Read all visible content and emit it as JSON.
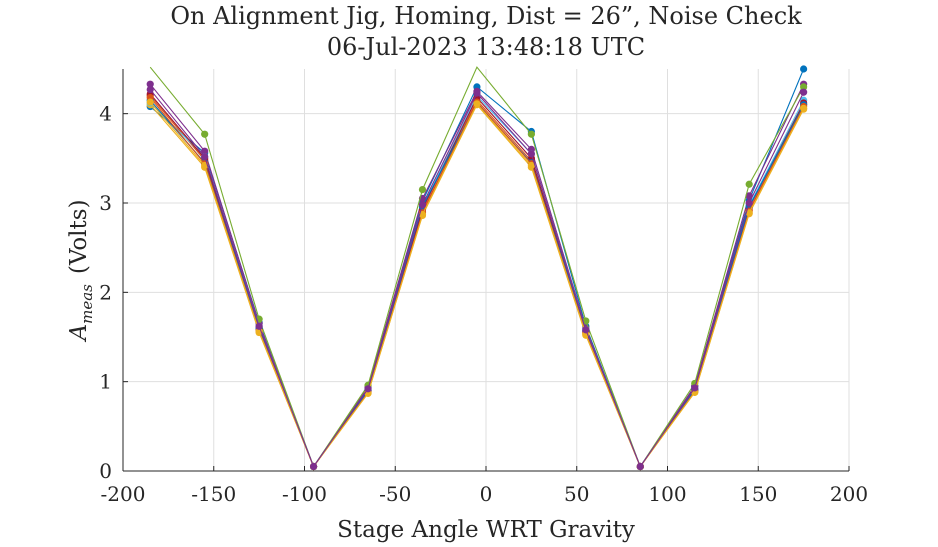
{
  "chart_data": {
    "type": "line",
    "title": [
      "On Alignment Jig, Homing, Dist = 26”, Noise Check",
      "06-Jul-2023 13:48:18 UTC"
    ],
    "xlabel": "Stage Angle WRT Gravity",
    "ylabel": "A_meas (Volts)",
    "ylabel_main": "A",
    "ylabel_sub": "meas",
    "ylabel_units": "(Volts)",
    "xlim": [
      -200,
      200
    ],
    "ylim": [
      0,
      4.5
    ],
    "xticks": [
      -200,
      -150,
      -100,
      -50,
      0,
      50,
      100,
      150,
      200
    ],
    "yticks": [
      0,
      1,
      2,
      3,
      4
    ],
    "grid": true,
    "x": [
      -185,
      -155,
      -125,
      -95,
      -65,
      -35,
      -5,
      25,
      55,
      85,
      115,
      145,
      175
    ],
    "series": [
      {
        "color": "#0072BD",
        "values": [
          4.08,
          3.56,
          1.66,
          0.05,
          0.93,
          3.02,
          4.3,
          3.8,
          1.62,
          0.05,
          0.95,
          3.03,
          4.5
        ]
      },
      {
        "color": "#D95319",
        "values": [
          4.2,
          3.48,
          1.58,
          0.05,
          0.89,
          2.9,
          4.15,
          3.47,
          1.55,
          0.05,
          0.9,
          2.92,
          4.1
        ]
      },
      {
        "color": "#EDB120",
        "values": [
          4.1,
          3.4,
          1.55,
          0.05,
          0.87,
          2.86,
          4.1,
          3.4,
          1.52,
          0.05,
          0.88,
          2.88,
          4.05
        ]
      },
      {
        "color": "#7E2F8E",
        "values": [
          4.33,
          3.58,
          1.65,
          0.05,
          0.94,
          3.05,
          4.25,
          3.6,
          1.6,
          0.05,
          0.95,
          3.08,
          4.33
        ]
      },
      {
        "color": "#77AC30",
        "values": [
          4.55,
          3.77,
          1.7,
          0.05,
          0.96,
          3.15,
          4.55,
          3.77,
          1.68,
          0.05,
          0.98,
          3.21,
          4.3
        ]
      },
      {
        "color": "#4DBEEE",
        "values": [
          4.12,
          3.52,
          1.62,
          0.05,
          0.91,
          2.95,
          4.2,
          3.55,
          1.58,
          0.05,
          0.92,
          2.97,
          4.15
        ]
      },
      {
        "color": "#A2142F",
        "values": [
          4.22,
          3.5,
          1.6,
          0.05,
          0.9,
          2.93,
          4.18,
          3.5,
          1.56,
          0.05,
          0.91,
          2.95,
          4.12
        ]
      },
      {
        "color": "#0072BD",
        "values": [
          4.15,
          3.45,
          1.6,
          0.05,
          0.9,
          2.96,
          4.12,
          3.45,
          1.57,
          0.05,
          0.91,
          2.96,
          4.1
        ]
      },
      {
        "color": "#D95319",
        "values": [
          4.18,
          3.44,
          1.57,
          0.05,
          0.88,
          2.89,
          4.13,
          3.44,
          1.54,
          0.05,
          0.89,
          2.91,
          4.08
        ]
      },
      {
        "color": "#EDB120",
        "values": [
          4.13,
          3.42,
          1.56,
          0.05,
          0.87,
          2.87,
          4.11,
          3.42,
          1.53,
          0.05,
          0.88,
          2.89,
          4.06
        ]
      },
      {
        "color": "#7E2F8E",
        "values": [
          4.27,
          3.52,
          1.62,
          0.05,
          0.92,
          2.98,
          4.23,
          3.55,
          1.58,
          0.05,
          0.93,
          3.0,
          4.24
        ]
      }
    ]
  }
}
